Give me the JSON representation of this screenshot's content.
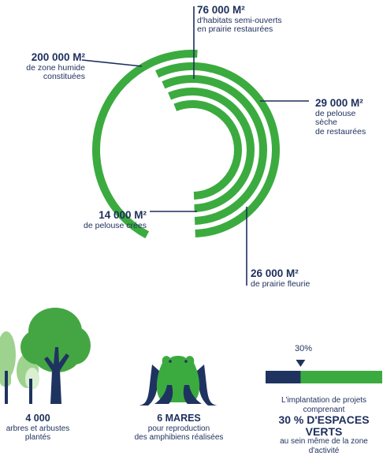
{
  "colors": {
    "green": "#3bab3f",
    "navy": "#1e2f5c",
    "light_green": "#8ccc7c",
    "tree_green": "#44a643",
    "tree_light": "#9ed28f",
    "trunk": "#1f3360"
  },
  "chart_data": {
    "type": "radial-arcs",
    "series": [
      {
        "value_label": "200 000 M²",
        "description": "de zone humide constituées",
        "value": 200000,
        "unit": "m²"
      },
      {
        "value_label": "76 000 M²",
        "description": "d'habitats semi-ouverts en prairie restaurées",
        "value": 76000,
        "unit": "m²"
      },
      {
        "value_label": "29 000 M²",
        "description": "de pelouse sèche de restaurées",
        "value": 29000,
        "unit": "m²"
      },
      {
        "value_label": "26 000 M²",
        "description": "de prairie fleurie",
        "value": 26000,
        "unit": "m²"
      },
      {
        "value_label": "14 000 M²",
        "description": "de pelouse crées",
        "value": 14000,
        "unit": "m²"
      }
    ]
  },
  "labels": {
    "a200": {
      "value": "200 000 M²",
      "line1": "de zone humide",
      "line2": "constituées"
    },
    "a76": {
      "value": "76 000 M²",
      "line1": "d'habitats semi-ouverts",
      "line2": "en prairie restaurées"
    },
    "a29": {
      "value": "29 000 M²",
      "line1": "de pelouse",
      "line2": "sèche",
      "line3": "de restaurées"
    },
    "a26": {
      "value": "26 000 M²",
      "line1": "de prairie fleurie"
    },
    "a14": {
      "value": "14 000 M²",
      "line1": "de pelouse crées"
    }
  },
  "stats": {
    "trees": {
      "value": "4 000",
      "line1": "arbres et arbustes",
      "line2": "plantés"
    },
    "ponds": {
      "value": "6 MARES",
      "line1": "pour reproduction",
      "line2": "des amphibiens réalisées"
    },
    "green_spaces": {
      "percent_label": "30%",
      "percent": 30,
      "line1": "L'implantation de projets",
      "line2": "comprenant",
      "big1": "30 % D'ESPACES",
      "big2": "VERTS",
      "line3": "au sein même de la zone",
      "line4": "d'activité"
    }
  }
}
